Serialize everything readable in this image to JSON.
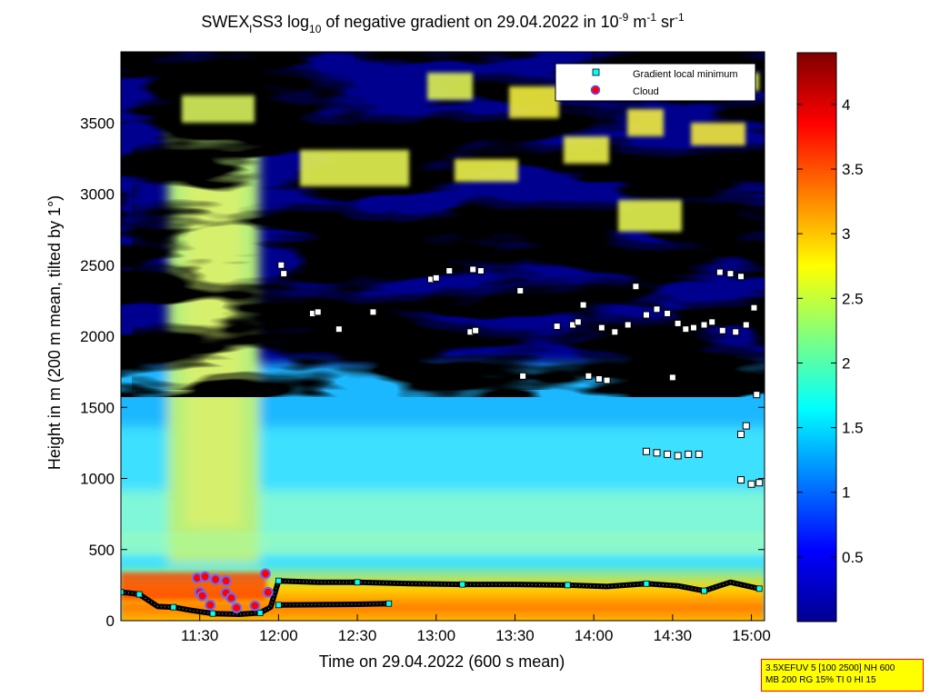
{
  "chart_data": {
    "type": "heatmap",
    "title": {
      "prefix": "SWEX",
      "sub_l": "l",
      "mid": "SS3 log",
      "sub_10": "10",
      "rest": " of negative gradient on 29.04.2022 in 10",
      "sup1": "-9",
      "unit_m": " m",
      "sup2": "-1",
      "unit_sr": " sr",
      "sup3": "-1"
    },
    "xlabel": "Time on 29.04.2022 (600 s mean)",
    "ylabel": "Height in m (200 m mean, tilted by 1°)",
    "x_ticks": [
      "11:30",
      "12:00",
      "12:30",
      "13:00",
      "13:30",
      "14:00",
      "14:30",
      "15:00"
    ],
    "x_tick_minutes": [
      690,
      720,
      750,
      780,
      810,
      840,
      870,
      900
    ],
    "xlim_minutes": [
      660,
      905
    ],
    "y_ticks": [
      0,
      500,
      1000,
      1500,
      2000,
      2500,
      3000,
      3500
    ],
    "ylim": [
      0,
      4000
    ],
    "colorbar": {
      "ticks": [
        0.5,
        1,
        1.5,
        2,
        2.5,
        3,
        3.5,
        4
      ],
      "range": [
        0,
        4.4
      ],
      "colormap": "jet"
    },
    "legend": {
      "placement": "top-right",
      "entries": [
        {
          "label": "Gradient local minimum",
          "marker": "square",
          "color": "#00ffff"
        },
        {
          "label": "Cloud",
          "marker": "circle",
          "color": "#ff0000"
        }
      ]
    },
    "layer_boundary_height_m": [
      {
        "minutes": 660,
        "height": 200
      },
      {
        "minutes": 663,
        "height": 195
      },
      {
        "minutes": 667,
        "height": 185
      },
      {
        "minutes": 674,
        "height": 100
      },
      {
        "minutes": 680,
        "height": 95
      },
      {
        "minutes": 686,
        "height": 75
      },
      {
        "minutes": 695,
        "height": 50
      },
      {
        "minutes": 705,
        "height": 45
      },
      {
        "minutes": 713,
        "height": 55
      },
      {
        "minutes": 717,
        "height": 95
      },
      {
        "minutes": 720,
        "height": 280
      },
      {
        "minutes": 735,
        "height": 270
      },
      {
        "minutes": 750,
        "height": 270
      },
      {
        "minutes": 770,
        "height": 260
      },
      {
        "minutes": 790,
        "height": 255
      },
      {
        "minutes": 810,
        "height": 255
      },
      {
        "minutes": 830,
        "height": 250
      },
      {
        "minutes": 845,
        "height": 240
      },
      {
        "minutes": 860,
        "height": 260
      },
      {
        "minutes": 872,
        "height": 245
      },
      {
        "minutes": 882,
        "height": 210
      },
      {
        "minutes": 892,
        "height": 270
      },
      {
        "minutes": 903,
        "height": 225
      }
    ],
    "lower_layer_height_m": [
      {
        "minutes": 720,
        "height": 110
      },
      {
        "minutes": 750,
        "height": 115
      },
      {
        "minutes": 762,
        "height": 120
      }
    ],
    "cloud_points": [
      {
        "minutes": 689,
        "height": 300
      },
      {
        "minutes": 690,
        "height": 200
      },
      {
        "minutes": 691,
        "height": 175
      },
      {
        "minutes": 692,
        "height": 310
      },
      {
        "minutes": 696,
        "height": 290
      },
      {
        "minutes": 700,
        "height": 280
      },
      {
        "minutes": 700,
        "height": 195
      },
      {
        "minutes": 702,
        "height": 160
      },
      {
        "minutes": 715,
        "height": 330
      },
      {
        "minutes": 716,
        "height": 200
      },
      {
        "minutes": 694,
        "height": 110
      },
      {
        "minutes": 704,
        "height": 90
      },
      {
        "minutes": 711,
        "height": 105
      }
    ],
    "gradient_minima_m": [
      {
        "minutes": 721,
        "height": 2500
      },
      {
        "minutes": 722,
        "height": 2440
      },
      {
        "minutes": 733,
        "height": 2160
      },
      {
        "minutes": 735,
        "height": 2170
      },
      {
        "minutes": 743,
        "height": 2050
      },
      {
        "minutes": 756,
        "height": 2170
      },
      {
        "minutes": 778,
        "height": 2400
      },
      {
        "minutes": 780,
        "height": 2410
      },
      {
        "minutes": 785,
        "height": 2460
      },
      {
        "minutes": 794,
        "height": 2470
      },
      {
        "minutes": 797,
        "height": 2460
      },
      {
        "minutes": 793,
        "height": 2030
      },
      {
        "minutes": 795,
        "height": 2040
      },
      {
        "minutes": 812,
        "height": 2320
      },
      {
        "minutes": 813,
        "height": 1720
      },
      {
        "minutes": 826,
        "height": 2070
      },
      {
        "minutes": 832,
        "height": 2080
      },
      {
        "minutes": 836,
        "height": 2220
      },
      {
        "minutes": 834,
        "height": 2100
      },
      {
        "minutes": 838,
        "height": 1720
      },
      {
        "minutes": 842,
        "height": 1700
      },
      {
        "minutes": 845,
        "height": 1690
      },
      {
        "minutes": 843,
        "height": 2060
      },
      {
        "minutes": 848,
        "height": 2030
      },
      {
        "minutes": 853,
        "height": 2080
      },
      {
        "minutes": 856,
        "height": 2350
      },
      {
        "minutes": 860,
        "height": 2150
      },
      {
        "minutes": 864,
        "height": 2190
      },
      {
        "minutes": 868,
        "height": 2160
      },
      {
        "minutes": 872,
        "height": 2090
      },
      {
        "minutes": 875,
        "height": 2050
      },
      {
        "minutes": 878,
        "height": 2060
      },
      {
        "minutes": 882,
        "height": 2080
      },
      {
        "minutes": 885,
        "height": 2100
      },
      {
        "minutes": 889,
        "height": 2040
      },
      {
        "minutes": 894,
        "height": 2030
      },
      {
        "minutes": 898,
        "height": 2080
      },
      {
        "minutes": 901,
        "height": 2200
      },
      {
        "minutes": 888,
        "height": 2450
      },
      {
        "minutes": 892,
        "height": 2440
      },
      {
        "minutes": 896,
        "height": 2420
      },
      {
        "minutes": 860,
        "height": 1190
      },
      {
        "minutes": 864,
        "height": 1180
      },
      {
        "minutes": 868,
        "height": 1170
      },
      {
        "minutes": 872,
        "height": 1160
      },
      {
        "minutes": 876,
        "height": 1170
      },
      {
        "minutes": 880,
        "height": 1170
      },
      {
        "minutes": 870,
        "height": 1710
      },
      {
        "minutes": 896,
        "height": 1310
      },
      {
        "minutes": 898,
        "height": 1370
      },
      {
        "minutes": 896,
        "height": 990
      },
      {
        "minutes": 900,
        "height": 960
      },
      {
        "minutes": 903,
        "height": 970
      },
      {
        "minutes": 902,
        "height": 1590
      }
    ]
  }
}
